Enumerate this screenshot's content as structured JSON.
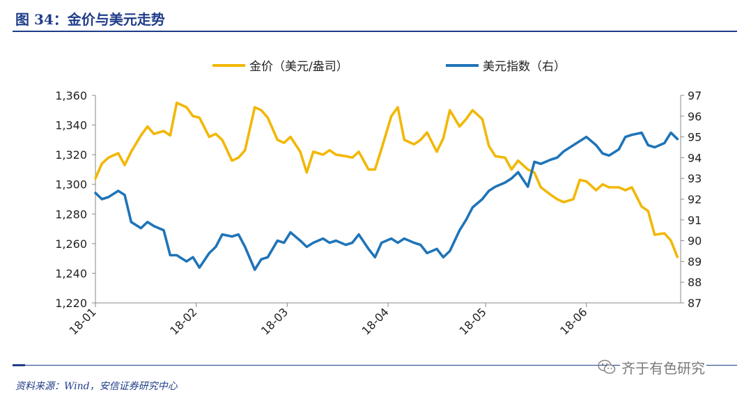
{
  "figure": {
    "title": "图 34：金价与美元走势",
    "source": "资料来源：Wind，安信证券研究中心",
    "watermark": "齐于有色研究",
    "watermark_icon": "wechat-icon"
  },
  "chart_data": {
    "type": "line",
    "title": "",
    "x_ticks": [
      "18-01",
      "18-02",
      "18-03",
      "18-04",
      "18-05",
      "18-06"
    ],
    "y_left": {
      "ylim": [
        1220,
        1360
      ],
      "ticks": [
        1220,
        1240,
        1260,
        1280,
        1300,
        1320,
        1340,
        1360
      ],
      "tick_labels": [
        "1,220",
        "1,240",
        "1,260",
        "1,280",
        "1,300",
        "1,320",
        "1,340",
        "1,360"
      ]
    },
    "y_right": {
      "ylim": [
        87,
        97
      ],
      "ticks": [
        87,
        88,
        89,
        90,
        91,
        92,
        93,
        94,
        95,
        96,
        97
      ],
      "tick_labels": [
        "87",
        "88",
        "89",
        "90",
        "91",
        "92",
        "93",
        "94",
        "95",
        "96",
        "97"
      ]
    },
    "grid": false,
    "legend_position": "top-center",
    "series": [
      {
        "name": "金价（美元/盎司）",
        "axis": "left",
        "color": "#f2b705",
        "x": [
          "2018-01-01",
          "2018-01-03",
          "2018-01-05",
          "2018-01-08",
          "2018-01-10",
          "2018-01-12",
          "2018-01-15",
          "2018-01-17",
          "2018-01-19",
          "2018-01-22",
          "2018-01-24",
          "2018-01-26",
          "2018-01-29",
          "2018-01-31",
          "2018-02-02",
          "2018-02-05",
          "2018-02-07",
          "2018-02-09",
          "2018-02-12",
          "2018-02-14",
          "2018-02-16",
          "2018-02-19",
          "2018-02-21",
          "2018-02-23",
          "2018-02-26",
          "2018-02-28",
          "2018-03-02",
          "2018-03-05",
          "2018-03-07",
          "2018-03-09",
          "2018-03-12",
          "2018-03-14",
          "2018-03-16",
          "2018-03-19",
          "2018-03-21",
          "2018-03-23",
          "2018-03-26",
          "2018-03-28",
          "2018-03-30",
          "2018-04-02",
          "2018-04-04",
          "2018-04-06",
          "2018-04-09",
          "2018-04-11",
          "2018-04-13",
          "2018-04-16",
          "2018-04-18",
          "2018-04-20",
          "2018-04-23",
          "2018-04-25",
          "2018-04-27",
          "2018-04-30",
          "2018-05-02",
          "2018-05-04",
          "2018-05-07",
          "2018-05-09",
          "2018-05-11",
          "2018-05-14",
          "2018-05-16",
          "2018-05-18",
          "2018-05-21",
          "2018-05-23",
          "2018-05-25",
          "2018-05-28",
          "2018-05-30",
          "2018-06-01",
          "2018-06-04",
          "2018-06-06",
          "2018-06-08",
          "2018-06-11",
          "2018-06-13",
          "2018-06-15",
          "2018-06-18",
          "2018-06-20",
          "2018-06-22",
          "2018-06-25",
          "2018-06-27",
          "2018-06-29"
        ],
        "values": [
          1304,
          1314,
          1318,
          1321,
          1313,
          1322,
          1333,
          1339,
          1334,
          1336,
          1333,
          1355,
          1352,
          1346,
          1345,
          1332,
          1334,
          1330,
          1316,
          1318,
          1323,
          1352,
          1350,
          1345,
          1330,
          1328,
          1332,
          1322,
          1308,
          1322,
          1320,
          1323,
          1320,
          1319,
          1318,
          1322,
          1310,
          1310,
          1324,
          1346,
          1352,
          1330,
          1327,
          1330,
          1335,
          1322,
          1331,
          1350,
          1339,
          1344,
          1350,
          1344,
          1326,
          1319,
          1318,
          1310,
          1316,
          1310,
          1308,
          1298,
          1293,
          1290,
          1288,
          1290,
          1303,
          1302,
          1296,
          1300,
          1298,
          1298,
          1296,
          1298,
          1285,
          1282,
          1266,
          1267,
          1262,
          1251
        ]
      },
      {
        "name": "美元指数（右）",
        "axis": "right",
        "color": "#1f74b8",
        "x": [
          "2018-01-01",
          "2018-01-03",
          "2018-01-05",
          "2018-01-08",
          "2018-01-10",
          "2018-01-12",
          "2018-01-15",
          "2018-01-17",
          "2018-01-19",
          "2018-01-22",
          "2018-01-24",
          "2018-01-26",
          "2018-01-29",
          "2018-01-31",
          "2018-02-02",
          "2018-02-05",
          "2018-02-07",
          "2018-02-09",
          "2018-02-12",
          "2018-02-14",
          "2018-02-16",
          "2018-02-19",
          "2018-02-21",
          "2018-02-23",
          "2018-02-26",
          "2018-02-28",
          "2018-03-02",
          "2018-03-05",
          "2018-03-07",
          "2018-03-09",
          "2018-03-12",
          "2018-03-14",
          "2018-03-16",
          "2018-03-19",
          "2018-03-21",
          "2018-03-23",
          "2018-03-26",
          "2018-03-28",
          "2018-03-30",
          "2018-04-02",
          "2018-04-04",
          "2018-04-06",
          "2018-04-09",
          "2018-04-11",
          "2018-04-13",
          "2018-04-16",
          "2018-04-18",
          "2018-04-20",
          "2018-04-23",
          "2018-04-25",
          "2018-04-27",
          "2018-04-30",
          "2018-05-02",
          "2018-05-04",
          "2018-05-07",
          "2018-05-09",
          "2018-05-11",
          "2018-05-14",
          "2018-05-16",
          "2018-05-18",
          "2018-05-21",
          "2018-05-23",
          "2018-05-25",
          "2018-05-28",
          "2018-05-30",
          "2018-06-01",
          "2018-06-04",
          "2018-06-06",
          "2018-06-08",
          "2018-06-11",
          "2018-06-13",
          "2018-06-15",
          "2018-06-18",
          "2018-06-20",
          "2018-06-22",
          "2018-06-25",
          "2018-06-27",
          "2018-06-29"
        ],
        "values": [
          92.3,
          92.0,
          92.1,
          92.4,
          92.2,
          90.9,
          90.6,
          90.9,
          90.7,
          90.5,
          89.3,
          89.3,
          89.0,
          89.2,
          88.7,
          89.4,
          89.7,
          90.3,
          90.2,
          90.3,
          89.7,
          88.6,
          89.1,
          89.2,
          90.0,
          89.9,
          90.4,
          90.0,
          89.7,
          89.9,
          90.1,
          89.9,
          90.0,
          89.8,
          89.9,
          90.3,
          89.6,
          89.2,
          89.9,
          90.1,
          89.9,
          90.1,
          89.9,
          89.8,
          89.4,
          89.6,
          89.2,
          89.5,
          90.5,
          91.0,
          91.6,
          92.0,
          92.4,
          92.6,
          92.8,
          93.0,
          93.3,
          92.6,
          93.8,
          93.7,
          93.9,
          94.0,
          94.3,
          94.6,
          94.8,
          95.0,
          94.6,
          94.2,
          94.1,
          94.4,
          95.0,
          95.1,
          95.2,
          94.6,
          94.5,
          94.7,
          95.2,
          94.9
        ]
      }
    ]
  }
}
